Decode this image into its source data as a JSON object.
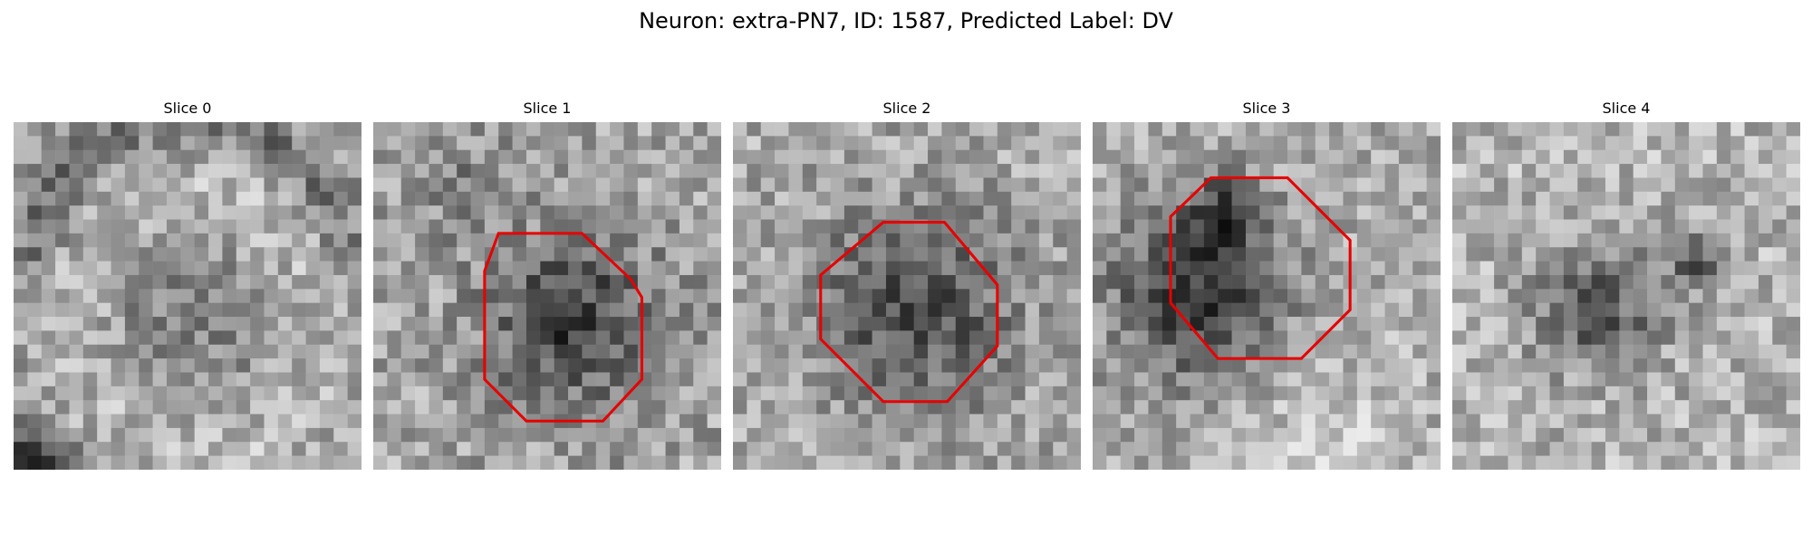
{
  "figure": {
    "title": "Neuron: extra-PN7, ID: 1587, Predicted Label: DV"
  },
  "outline_color": "#e60000",
  "panels": [
    {
      "title": "Slice 0",
      "has_outline": false
    },
    {
      "title": "Slice 1",
      "has_outline": true
    },
    {
      "title": "Slice 2",
      "has_outline": true
    },
    {
      "title": "Slice 3",
      "has_outline": true
    },
    {
      "title": "Slice 4",
      "has_outline": false
    }
  ]
}
